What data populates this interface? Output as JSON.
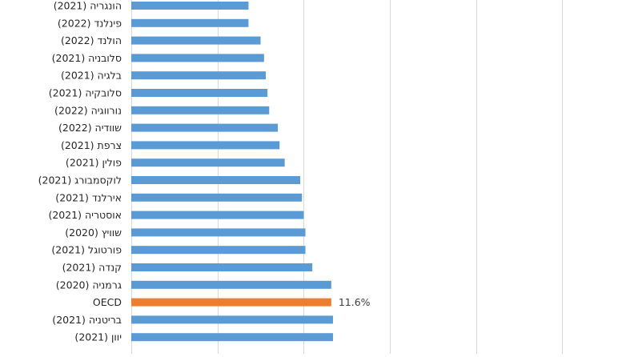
{
  "chart_data": {
    "type": "bar",
    "orientation": "horizontal",
    "categories": [
      "הונגריה (2021)",
      "פינלנד (2022)",
      "הולנד (2022)",
      "סלובניה (2021)",
      "בלגיה (2021)",
      "סלובקיה (2021)",
      "נורווגיה (2022)",
      "שוודיה (2022)",
      "צרפת (2021)",
      "פולין (2021)",
      "לוקסמבורג (2021)",
      "אירלנד (2021)",
      "אוסטריה (2021)",
      "שוויץ (2020)",
      "פורטוגל (2021)",
      "קנדה (2021)",
      "גרמניה (2020)",
      "OECD",
      "בריטניה (2021)",
      "יוון (2021)"
    ],
    "values": [
      6.8,
      6.8,
      7.5,
      7.7,
      7.8,
      7.9,
      8.0,
      8.5,
      8.6,
      8.9,
      9.8,
      9.9,
      10.0,
      10.1,
      10.1,
      10.5,
      11.6,
      11.6,
      11.7,
      11.7
    ],
    "highlight_index": 17,
    "data_labels": [
      {
        "index": 17,
        "text": "11.6%"
      }
    ],
    "colors": {
      "bar": "#5b9bd5",
      "highlight": "#ed7d31",
      "grid": "#d9d9d9"
    },
    "xlim": [
      0,
      28
    ],
    "grid": "vertical"
  }
}
